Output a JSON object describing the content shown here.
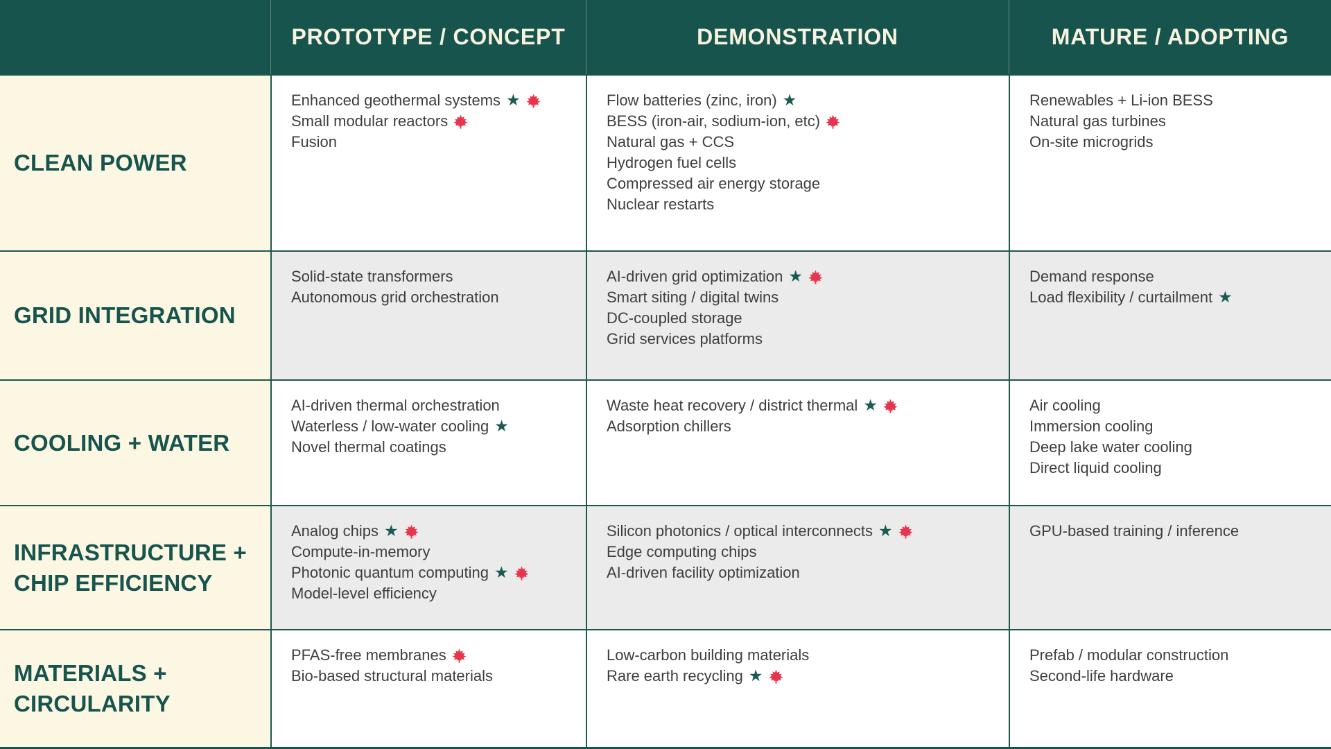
{
  "colors": {
    "header_bg": "#17544e",
    "header_text": "#f7f3de",
    "label_bg": "#fbf7e3",
    "label_text": "#17544e",
    "row_bg": "#ffffff",
    "row_alt_bg": "#ebebeb",
    "body_text": "#3e3e3e",
    "star": "#1a5a52",
    "maple_leaf": "#e8344d",
    "border": "#1f574f"
  },
  "icons": {
    "star_glyph": "★",
    "star_name": "star-icon",
    "leaf_name": "maple-leaf-icon"
  },
  "table": {
    "column_headers": [
      "PROTOTYPE / CONCEPT",
      "DEMONSTRATION",
      "MATURE / ADOPTING"
    ],
    "rows": [
      {
        "label": "CLEAN POWER",
        "cells": [
          [
            {
              "text": "Enhanced geothermal systems",
              "star": true,
              "leaf": true
            },
            {
              "text": "Small modular reactors",
              "leaf": true
            },
            {
              "text": "Fusion"
            }
          ],
          [
            {
              "text": "Flow batteries (zinc, iron)",
              "star": true
            },
            {
              "text": "BESS (iron-air, sodium-ion, etc)",
              "leaf": true
            },
            {
              "text": "Natural gas + CCS"
            },
            {
              "text": "Hydrogen fuel cells"
            },
            {
              "text": "Compressed air energy storage"
            },
            {
              "text": "Nuclear restarts"
            }
          ],
          [
            {
              "text": "Renewables + Li-ion BESS"
            },
            {
              "text": "Natural gas turbines"
            },
            {
              "text": "On-site microgrids"
            }
          ]
        ]
      },
      {
        "label": "GRID INTEGRATION",
        "cells": [
          [
            {
              "text": "Solid-state transformers"
            },
            {
              "text": "Autonomous grid orchestration"
            }
          ],
          [
            {
              "text": "AI-driven grid optimization",
              "star": true,
              "leaf": true
            },
            {
              "text": "Smart siting / digital twins"
            },
            {
              "text": "DC-coupled storage"
            },
            {
              "text": "Grid services platforms"
            }
          ],
          [
            {
              "text": "Demand response"
            },
            {
              "text": "Load flexibility / curtailment",
              "star": true
            }
          ]
        ]
      },
      {
        "label": "COOLING + WATER",
        "cells": [
          [
            {
              "text": "AI-driven thermal orchestration"
            },
            {
              "text": "Waterless / low-water cooling",
              "star": true
            },
            {
              "text": "Novel thermal coatings"
            }
          ],
          [
            {
              "text": "Waste heat recovery / district thermal",
              "star": true,
              "leaf": true
            },
            {
              "text": "Adsorption chillers"
            }
          ],
          [
            {
              "text": "Air cooling"
            },
            {
              "text": "Immersion cooling"
            },
            {
              "text": "Deep lake water cooling"
            },
            {
              "text": "Direct liquid cooling"
            }
          ]
        ]
      },
      {
        "label": "INFRASTRUCTURE + CHIP EFFICIENCY",
        "cells": [
          [
            {
              "text": "Analog chips",
              "star": true,
              "leaf": true
            },
            {
              "text": "Compute-in-memory"
            },
            {
              "text": "Photonic quantum computing",
              "star": true,
              "leaf": true
            },
            {
              "text": "Model-level efficiency"
            }
          ],
          [
            {
              "text": "Silicon photonics / optical interconnects",
              "star": true,
              "leaf": true
            },
            {
              "text": "Edge computing chips"
            },
            {
              "text": "AI-driven facility optimization"
            }
          ],
          [
            {
              "text": "GPU-based training / inference"
            }
          ]
        ]
      },
      {
        "label": "MATERIALS + CIRCULARITY",
        "cells": [
          [
            {
              "text": "PFAS-free membranes",
              "leaf": true
            },
            {
              "text": "Bio-based structural materials"
            }
          ],
          [
            {
              "text": "Low-carbon building materials"
            },
            {
              "text": "Rare earth recycling",
              "star": true,
              "leaf": true
            }
          ],
          [
            {
              "text": "Prefab / modular construction"
            },
            {
              "text": "Second-life hardware"
            }
          ]
        ]
      }
    ]
  }
}
